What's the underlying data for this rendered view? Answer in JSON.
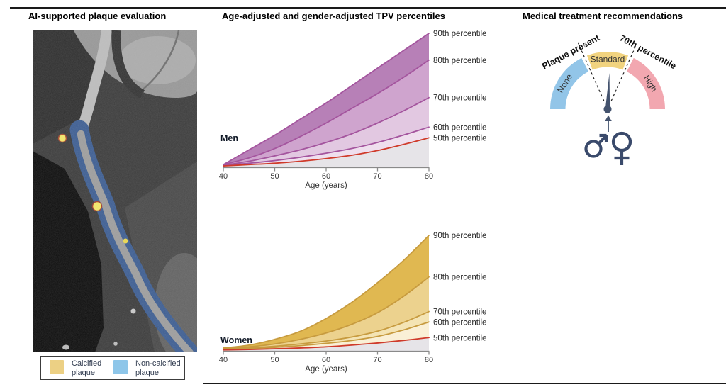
{
  "panels": {
    "left": {
      "title": "AI-supported plaque evaluation",
      "image": "coronary-ct-angiogram-with-ai-plaque-overlay",
      "legend": {
        "items": [
          {
            "label": "Calcified plaque",
            "color": "#ecd084"
          },
          {
            "label": "Non-calcified plaque",
            "color": "#8ec6e9"
          }
        ]
      }
    },
    "middle": {
      "title": "Age-adjusted and gender-adjusted TPV percentiles"
    },
    "right": {
      "title": "Medical treatment recommendations",
      "gauge": {
        "segments": [
          {
            "label": "None",
            "color": "#92c5e8"
          },
          {
            "label": "Standard",
            "color": "#f1d37f"
          },
          {
            "label": "High",
            "color": "#f2a7b0"
          }
        ],
        "threshold_labels": [
          "Plaque present",
          "70th percentile"
        ],
        "needle_color": "#44536e",
        "icon_color": "#3a4a6b",
        "gender_icons": [
          "male",
          "female"
        ]
      }
    }
  },
  "chart_data": [
    {
      "type": "area",
      "group": "Men",
      "x": [
        40,
        45,
        50,
        55,
        60,
        65,
        70,
        75,
        80
      ],
      "x_ticks": [
        40,
        50,
        60,
        70,
        80
      ],
      "xlabel": "Age (years)",
      "xlim": [
        40,
        80
      ],
      "ylabel": "",
      "ylim": [
        0,
        1
      ],
      "y_note": "normalized total plaque volume (no y-axis shown)",
      "grid": false,
      "legend_position": "right-of-curves",
      "below_fill": "#e6e4e8",
      "axis_color": "#8a8a8a",
      "series": [
        {
          "name": "90th percentile",
          "line": "#a4559e",
          "fill": "#b780b7",
          "values": [
            0.02,
            0.13,
            0.24,
            0.36,
            0.48,
            0.61,
            0.74,
            0.87,
            1.0
          ]
        },
        {
          "name": "80th percentile",
          "line": "#a4559e",
          "fill": "#cfa4ce",
          "values": [
            0.02,
            0.07,
            0.14,
            0.23,
            0.33,
            0.44,
            0.55,
            0.67,
            0.8
          ]
        },
        {
          "name": "70th percentile",
          "line": "#a4559e",
          "fill": "#e2c8e1",
          "values": [
            0.015,
            0.045,
            0.085,
            0.13,
            0.185,
            0.25,
            0.33,
            0.42,
            0.52
          ]
        },
        {
          "name": "60th percentile",
          "line": "#a4559e",
          "fill": "#efdfee",
          "values": [
            0.015,
            0.03,
            0.05,
            0.075,
            0.105,
            0.14,
            0.185,
            0.24,
            0.3
          ]
        },
        {
          "name": "50th percentile",
          "line": "#cf3a2a",
          "fill": null,
          "values": [
            0.01,
            0.02,
            0.03,
            0.045,
            0.065,
            0.09,
            0.125,
            0.17,
            0.22
          ]
        }
      ]
    },
    {
      "type": "area",
      "group": "Women",
      "x": [
        40,
        45,
        50,
        55,
        60,
        65,
        70,
        75,
        80
      ],
      "x_ticks": [
        40,
        50,
        60,
        70,
        80
      ],
      "xlabel": "Age (years)",
      "xlim": [
        40,
        80
      ],
      "ylabel": "",
      "ylim": [
        0,
        1
      ],
      "y_note": "normalized total plaque volume (no y-axis shown)",
      "grid": false,
      "legend_position": "right-of-curves",
      "below_fill": "#e6e4e8",
      "axis_color": "#8a8a8a",
      "series": [
        {
          "name": "90th percentile",
          "line": "#c79b3f",
          "fill": "#e0b851",
          "values": [
            0.025,
            0.05,
            0.1,
            0.17,
            0.28,
            0.42,
            0.59,
            0.78,
            1.0
          ]
        },
        {
          "name": "80th percentile",
          "line": "#c79b3f",
          "fill": "#ecd28e",
          "values": [
            0.02,
            0.035,
            0.06,
            0.1,
            0.155,
            0.23,
            0.33,
            0.47,
            0.64
          ]
        },
        {
          "name": "70th percentile",
          "line": "#c79b3f",
          "fill": "#f4e4b4",
          "values": [
            0.015,
            0.025,
            0.04,
            0.06,
            0.085,
            0.12,
            0.17,
            0.245,
            0.34
          ]
        },
        {
          "name": "60th percentile",
          "line": "#c79b3f",
          "fill": "#faf0d6",
          "values": [
            0.012,
            0.02,
            0.03,
            0.045,
            0.065,
            0.09,
            0.125,
            0.18,
            0.25
          ]
        },
        {
          "name": "50th percentile",
          "line": "#cf3a2a",
          "fill": null,
          "values": [
            0.008,
            0.012,
            0.018,
            0.025,
            0.035,
            0.05,
            0.068,
            0.09,
            0.115
          ]
        }
      ]
    }
  ]
}
